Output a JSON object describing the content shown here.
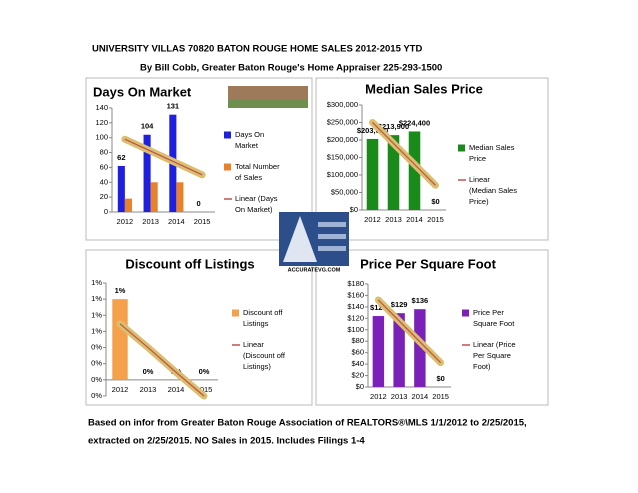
{
  "header": {
    "title": "UNIVERSITY VILLAS 70820  BATON ROUGE HOME SALES 2012-2015 YTD",
    "byline": "By Bill Cobb, Greater Baton Rouge's Home Appraiser 225-293-1500"
  },
  "footer": {
    "line1": "Based on infor from Greater Baton Rouge Association of REALTORS®\\MLS 1/1/2012 to 2/25/2015,",
    "line2": "extracted on 2/25/2015.  NO Sales in 2015.  Includes Filings 1-4"
  },
  "logo_text": "ACCURATEVG.COM",
  "chart_data": [
    {
      "type": "bar",
      "title": "Days On Market",
      "categories": [
        "2012",
        "2013",
        "2014",
        "2015"
      ],
      "series": [
        {
          "name": "Days On Market",
          "type": "bar",
          "color": "#1f1fe0",
          "values": [
            62,
            104,
            131,
            0
          ]
        },
        {
          "name": "Total Number of Sales",
          "type": "bar",
          "color": "#e8822a",
          "values": [
            18,
            40,
            40,
            0
          ]
        },
        {
          "name": "Linear (Days On Market)",
          "type": "line",
          "color": "#c0504d",
          "values": [
            98,
            82,
            66,
            50
          ]
        }
      ],
      "ylim": [
        0,
        140
      ],
      "yticks": [
        0,
        20,
        40,
        60,
        80,
        100,
        120,
        140
      ],
      "grid": false,
      "legend": "right"
    },
    {
      "type": "bar",
      "title": "Median Sales Price",
      "categories": [
        "2012",
        "2013",
        "2014",
        "2015"
      ],
      "series": [
        {
          "name": "Median Sales Price",
          "type": "bar",
          "color": "#1a8a1a",
          "values": [
            203000,
            213900,
            224400,
            0
          ],
          "value_labels": [
            "$203,000",
            "$213,900",
            "$224,400",
            "$0"
          ]
        },
        {
          "name": "Linear (Median Sales Price)",
          "type": "line",
          "color": "#c0504d",
          "values": [
            250100,
            190183,
            130367,
            70550
          ]
        }
      ],
      "ylim": [
        0,
        300000
      ],
      "yticks": [
        {
          "value": 0,
          "label": "$0"
        },
        {
          "value": 50000,
          "label": "$50,000"
        },
        {
          "value": 100000,
          "label": "$100,000"
        },
        {
          "value": 150000,
          "label": "$150,000"
        },
        {
          "value": 200000,
          "label": "$200,000"
        },
        {
          "value": 250000,
          "label": "$250,000"
        },
        {
          "value": 300000,
          "label": "$300,000"
        }
      ],
      "grid": false,
      "legend": "right"
    },
    {
      "type": "bar",
      "title": "Discount off Listings",
      "categories": [
        "2012",
        "2013",
        "2014",
        "2015"
      ],
      "series": [
        {
          "name": "Discount off Listings",
          "type": "bar",
          "color": "#f5a04a",
          "values": [
            0.85,
            0,
            0,
            0
          ],
          "value_labels": [
            "1%",
            "0%",
            "0%",
            "0%"
          ]
        },
        {
          "name": "Linear (Discount off Listings)",
          "type": "line",
          "color": "#c0504d",
          "values": [
            0.59,
            0.34,
            0.08,
            -0.17
          ]
        }
      ],
      "ylim": [
        -0.17,
        1.02
      ],
      "yticks": [
        {
          "value": -0.17,
          "label": "0%"
        },
        {
          "value": 0,
          "label": "0%"
        },
        {
          "value": 0.17,
          "label": "0%"
        },
        {
          "value": 0.34,
          "label": "0%"
        },
        {
          "value": 0.51,
          "label": "1%"
        },
        {
          "value": 0.68,
          "label": "1%"
        },
        {
          "value": 0.85,
          "label": "1%"
        },
        {
          "value": 1.02,
          "label": "1%"
        }
      ],
      "grid": false,
      "legend": "right"
    },
    {
      "type": "bar",
      "title": "Price Per Square Foot",
      "categories": [
        "2012",
        "2013",
        "2014",
        "2015"
      ],
      "series": [
        {
          "name": "Price Per Square Foot",
          "type": "bar",
          "color": "#7a22b8",
          "values": [
            124,
            129,
            136,
            0
          ],
          "value_labels": [
            "$124",
            "$129",
            "$136",
            "$0"
          ]
        },
        {
          "name": "Linear (Price Per Square Foot)",
          "type": "line",
          "color": "#c0504d",
          "values": [
            152,
            115.5,
            79,
            42.5
          ]
        }
      ],
      "ylim": [
        0,
        180
      ],
      "yticks": [
        {
          "value": 0,
          "label": "$0"
        },
        {
          "value": 20,
          "label": "$20"
        },
        {
          "value": 40,
          "label": "$40"
        },
        {
          "value": 60,
          "label": "$60"
        },
        {
          "value": 80,
          "label": "$80"
        },
        {
          "value": 100,
          "label": "$100"
        },
        {
          "value": 120,
          "label": "$120"
        },
        {
          "value": 140,
          "label": "$140"
        },
        {
          "value": 160,
          "label": "$160"
        },
        {
          "value": 180,
          "label": "$180"
        }
      ],
      "grid": false,
      "legend": "right"
    }
  ]
}
